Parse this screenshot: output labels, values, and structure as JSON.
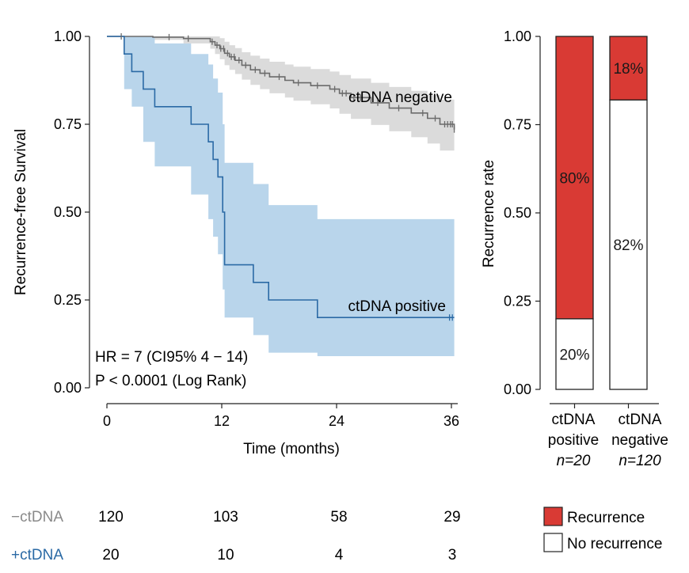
{
  "chart_data": [
    {
      "type": "line",
      "subtype": "kaplan-meier",
      "title": "",
      "xlabel": "Time (months)",
      "ylabel": "Recurrence-free Survival",
      "xlim": [
        0,
        36
      ],
      "ylim": [
        0,
        1
      ],
      "xticks": [
        0,
        12,
        24,
        36
      ],
      "yticks": [
        0.0,
        0.25,
        0.5,
        0.75,
        1.0
      ],
      "xtick_labels": [
        "0",
        "12",
        "24",
        "36"
      ],
      "ytick_labels": [
        "0.00",
        "0.25",
        "0.50",
        "0.75",
        "1.00"
      ],
      "colors": {
        "negative": "#6b6b6b",
        "negative_ci": "#d9d9d9",
        "positive": "#2b6aa5",
        "positive_ci": "#b5d3ea"
      },
      "series": [
        {
          "name": "ctDNA negative",
          "label": "ctDNA negative",
          "step_x": [
            0,
            4.8,
            8,
            10.8,
            11.3,
            11.8,
            12.3,
            12.8,
            13.4,
            14.1,
            15.0,
            16.0,
            17.0,
            18.6,
            19.5,
            21.3,
            23.3,
            24.3,
            25.5,
            27.6,
            29.5,
            31.8,
            33.5,
            34.8,
            36.3
          ],
          "step_y": [
            1.0,
            0.998,
            0.994,
            0.985,
            0.975,
            0.965,
            0.952,
            0.942,
            0.932,
            0.918,
            0.905,
            0.895,
            0.885,
            0.875,
            0.868,
            0.86,
            0.85,
            0.838,
            0.826,
            0.811,
            0.796,
            0.782,
            0.767,
            0.75,
            0.735
          ],
          "ci_upper": [
            1.0,
            1.0,
            1.0,
            1.0,
            1.0,
            0.995,
            0.985,
            0.975,
            0.967,
            0.955,
            0.945,
            0.937,
            0.928,
            0.92,
            0.914,
            0.907,
            0.9,
            0.89,
            0.88,
            0.868,
            0.856,
            0.845,
            0.833,
            0.82,
            0.81
          ],
          "ci_lower": [
            1.0,
            0.99,
            0.98,
            0.965,
            0.95,
            0.935,
            0.918,
            0.905,
            0.893,
            0.877,
            0.862,
            0.85,
            0.838,
            0.826,
            0.817,
            0.807,
            0.795,
            0.78,
            0.765,
            0.748,
            0.73,
            0.713,
            0.695,
            0.675,
            0.645
          ],
          "censor_times": [
            1.5,
            6.5,
            8.5,
            11.0,
            11.5,
            11.9,
            12.2,
            12.6,
            13.0,
            13.3,
            13.8,
            14.5,
            15.5,
            16.5,
            18.0,
            20.0,
            22.0,
            23.8,
            24.6,
            25.0,
            25.8,
            26.5,
            28.3,
            30.5,
            33.0,
            34.3,
            35.3,
            35.6,
            35.9,
            36.1,
            36.3
          ]
        },
        {
          "name": "ctDNA positive",
          "label": "ctDNA positive",
          "step_x": [
            0,
            1.8,
            2.6,
            3.8,
            5.0,
            8.8,
            10.6,
            11.1,
            11.6,
            12.1,
            12.3,
            15.3,
            16.9,
            22.0,
            36.3
          ],
          "step_y": [
            1.0,
            0.95,
            0.9,
            0.85,
            0.8,
            0.75,
            0.7,
            0.65,
            0.6,
            0.5,
            0.35,
            0.3,
            0.25,
            0.2,
            0.2
          ],
          "ci_upper": [
            1.0,
            1.0,
            1.0,
            1.0,
            0.98,
            0.95,
            0.92,
            0.88,
            0.84,
            0.75,
            0.64,
            0.58,
            0.52,
            0.48,
            0.48
          ],
          "ci_lower": [
            1.0,
            0.85,
            0.8,
            0.7,
            0.63,
            0.55,
            0.48,
            0.43,
            0.38,
            0.28,
            0.2,
            0.15,
            0.1,
            0.09,
            0.09
          ],
          "censor_times": [
            35.8,
            36.1
          ]
        }
      ],
      "annotations": {
        "hr": "HR = 7 (CI95% 4 − 14)",
        "p": "P < 0.0001 (Log Rank)"
      }
    },
    {
      "type": "bar",
      "subtype": "stacked",
      "title": "",
      "xlabel": "",
      "ylabel": "Recurrence rate",
      "ylim": [
        0,
        1
      ],
      "yticks": [
        0.0,
        0.25,
        0.5,
        0.75,
        1.0
      ],
      "ytick_labels": [
        "0.00",
        "0.25",
        "0.50",
        "0.75",
        "1.00"
      ],
      "categories": [
        {
          "line1": "ctDNA",
          "line2": "positive",
          "n": "n=20"
        },
        {
          "line1": "ctDNA",
          "line2": "negative",
          "n": "n=120"
        }
      ],
      "series": [
        {
          "name": "No recurrence",
          "values": [
            0.2,
            0.82
          ],
          "labels": [
            "20%",
            "82%"
          ],
          "color": "#ffffff"
        },
        {
          "name": "Recurrence",
          "values": [
            0.8,
            0.18
          ],
          "labels": [
            "80%",
            "18%"
          ],
          "color": "#d93a34"
        }
      ],
      "legend": {
        "position": "bottom-right",
        "items": [
          "Recurrence",
          "No recurrence"
        ]
      }
    }
  ],
  "risk_table": {
    "rows": [
      {
        "label": "−ctDNA",
        "color": "#8a8a8a",
        "values": [
          "120",
          "103",
          "58",
          "29"
        ]
      },
      {
        "label": "+ctDNA",
        "color": "#2b6aa5",
        "values": [
          "20",
          "10",
          "4",
          "3"
        ]
      }
    ],
    "times": [
      0,
      12,
      24,
      36
    ]
  }
}
